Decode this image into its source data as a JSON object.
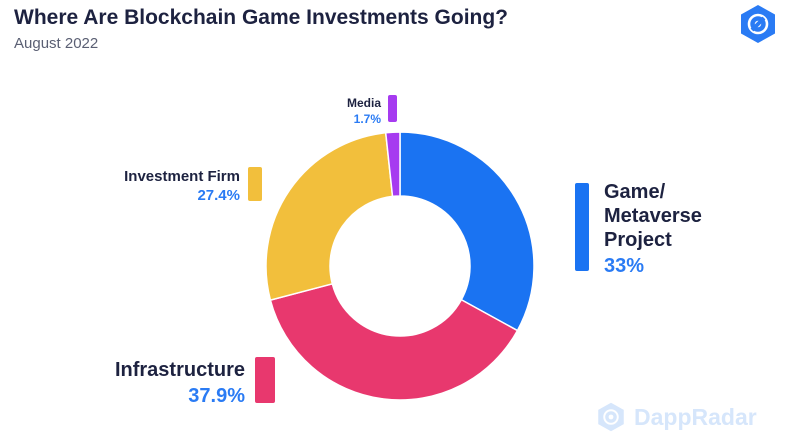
{
  "header": {
    "title": "Where Are Blockchain Game Investments Going?",
    "subtitle": "August 2022"
  },
  "brand": {
    "logo_icon": "dappradar-logo-icon",
    "watermark": "DappRadar",
    "accent": "#2a7bf4"
  },
  "chart_data": {
    "type": "pie",
    "donut": true,
    "title": "Where Are Blockchain Game Investments Going?",
    "subtitle": "August 2022",
    "slices": [
      {
        "label": "Game/ Metaverse Project",
        "label_lines": [
          "Game/",
          "Metaverse",
          "Project"
        ],
        "value": 33,
        "value_label": "33%",
        "color": "#1a73f2"
      },
      {
        "label": "Infrastructure",
        "label_lines": [
          "Infrastructure"
        ],
        "value": 37.9,
        "value_label": "37.9%",
        "color": "#e8386e"
      },
      {
        "label": "Investment Firm",
        "label_lines": [
          "Investment Firm"
        ],
        "value": 27.4,
        "value_label": "27.4%",
        "color": "#f2bf3c"
      },
      {
        "label": "Media",
        "label_lines": [
          "Media"
        ],
        "value": 1.7,
        "value_label": "1.7%",
        "color": "#a63bf0"
      }
    ]
  }
}
